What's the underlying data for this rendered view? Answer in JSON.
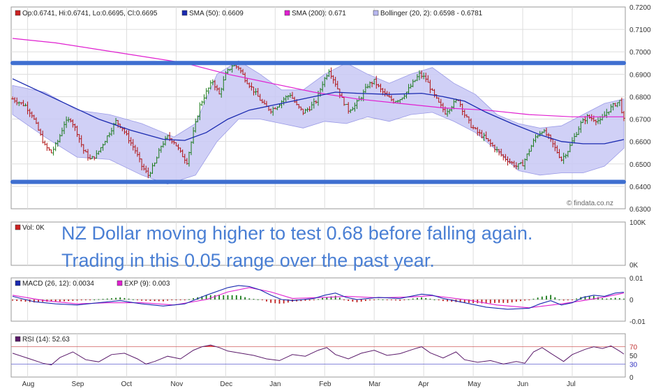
{
  "chart_data": [
    {
      "type": "ohlc",
      "panel": "price",
      "ylim": [
        0.63,
        0.72
      ],
      "yticks": [
        "0.6300",
        "0.6400",
        "0.6500",
        "0.6600",
        "0.6700",
        "0.6800",
        "0.6900",
        "0.7000",
        "0.7100",
        "0.7200"
      ],
      "months": [
        "Aug",
        "Sep",
        "Oct",
        "Nov",
        "Dec",
        "Jan",
        "Feb",
        "Mar",
        "Apr",
        "May",
        "Jun",
        "Jul"
      ],
      "legend": [
        {
          "text": "Op:0.6741, Hi:0.6741, Lo:0.6695, Cl:0.6695",
          "color": "#cc2222"
        },
        {
          "text": "SMA (50): 0.6609",
          "color": "#1a2ab0"
        },
        {
          "text": "SMA (200): 0.671",
          "color": "#e020d0"
        },
        {
          "text": "Bollinger (20, 2): 0.6598 - 0.6781",
          "color": "#b8b8f0"
        }
      ],
      "close_path": [
        [
          0,
          0.679
        ],
        [
          3,
          0.6775
        ],
        [
          6,
          0.676
        ],
        [
          9,
          0.672
        ],
        [
          12,
          0.665
        ],
        [
          15,
          0.658
        ],
        [
          18,
          0.655
        ],
        [
          21,
          0.66
        ],
        [
          24,
          0.668
        ],
        [
          27,
          0.67
        ],
        [
          30,
          0.664
        ],
        [
          33,
          0.656
        ],
        [
          36,
          0.652
        ],
        [
          39,
          0.654
        ],
        [
          42,
          0.659
        ],
        [
          45,
          0.664
        ],
        [
          48,
          0.669
        ],
        [
          51,
          0.666
        ],
        [
          54,
          0.661
        ],
        [
          57,
          0.656
        ],
        [
          60,
          0.649
        ],
        [
          63,
          0.645
        ],
        [
          66,
          0.65
        ],
        [
          69,
          0.658
        ],
        [
          72,
          0.662
        ],
        [
          75,
          0.66
        ],
        [
          78,
          0.655
        ],
        [
          81,
          0.651
        ],
        [
          84,
          0.664
        ],
        [
          87,
          0.676
        ],
        [
          90,
          0.682
        ],
        [
          93,
          0.687
        ],
        [
          96,
          0.681
        ],
        [
          99,
          0.69
        ],
        [
          102,
          0.694
        ],
        [
          105,
          0.693
        ],
        [
          108,
          0.688
        ],
        [
          111,
          0.684
        ],
        [
          114,
          0.68
        ],
        [
          117,
          0.676
        ],
        [
          120,
          0.674
        ],
        [
          123,
          0.676
        ],
        [
          126,
          0.679
        ],
        [
          129,
          0.681
        ],
        [
          132,
          0.676
        ],
        [
          135,
          0.673
        ],
        [
          138,
          0.675
        ],
        [
          141,
          0.678
        ],
        [
          144,
          0.686
        ],
        [
          147,
          0.692
        ],
        [
          150,
          0.686
        ],
        [
          153,
          0.679
        ],
        [
          156,
          0.674
        ],
        [
          159,
          0.676
        ],
        [
          162,
          0.68
        ],
        [
          165,
          0.685
        ],
        [
          168,
          0.687
        ],
        [
          171,
          0.683
        ],
        [
          174,
          0.68
        ],
        [
          177,
          0.678
        ],
        [
          180,
          0.679
        ],
        [
          183,
          0.682
        ],
        [
          186,
          0.686
        ],
        [
          189,
          0.69
        ],
        [
          192,
          0.688
        ],
        [
          195,
          0.682
        ],
        [
          198,
          0.677
        ],
        [
          201,
          0.673
        ],
        [
          204,
          0.676
        ],
        [
          207,
          0.679
        ],
        [
          210,
          0.672
        ],
        [
          213,
          0.667
        ],
        [
          216,
          0.664
        ],
        [
          219,
          0.662
        ],
        [
          222,
          0.659
        ],
        [
          225,
          0.656
        ],
        [
          228,
          0.653
        ],
        [
          231,
          0.651
        ],
        [
          234,
          0.649
        ],
        [
          237,
          0.65
        ],
        [
          240,
          0.656
        ],
        [
          243,
          0.662
        ],
        [
          246,
          0.665
        ],
        [
          249,
          0.662
        ],
        [
          252,
          0.657
        ],
        [
          255,
          0.652
        ],
        [
          258,
          0.656
        ],
        [
          261,
          0.662
        ],
        [
          264,
          0.668
        ],
        [
          267,
          0.671
        ],
        [
          270,
          0.67
        ],
        [
          273,
          0.669
        ],
        [
          276,
          0.673
        ],
        [
          279,
          0.676
        ],
        [
          282,
          0.678
        ],
        [
          284,
          0.6695
        ]
      ],
      "sma50": [
        [
          0,
          0.688
        ],
        [
          20,
          0.679
        ],
        [
          40,
          0.67
        ],
        [
          55,
          0.665
        ],
        [
          70,
          0.661
        ],
        [
          80,
          0.6605
        ],
        [
          90,
          0.664
        ],
        [
          100,
          0.67
        ],
        [
          110,
          0.674
        ],
        [
          120,
          0.676
        ],
        [
          130,
          0.678
        ],
        [
          140,
          0.68
        ],
        [
          150,
          0.682
        ],
        [
          160,
          0.6815
        ],
        [
          175,
          0.681
        ],
        [
          190,
          0.6815
        ],
        [
          200,
          0.68
        ],
        [
          210,
          0.678
        ],
        [
          220,
          0.673
        ],
        [
          232,
          0.668
        ],
        [
          245,
          0.663
        ],
        [
          255,
          0.66
        ],
        [
          265,
          0.659
        ],
        [
          275,
          0.659
        ],
        [
          284,
          0.6609
        ]
      ],
      "sma200": [
        [
          0,
          0.706
        ],
        [
          20,
          0.704
        ],
        [
          40,
          0.701
        ],
        [
          60,
          0.698
        ],
        [
          80,
          0.695
        ],
        [
          100,
          0.69
        ],
        [
          120,
          0.686
        ],
        [
          140,
          0.682
        ],
        [
          160,
          0.679
        ],
        [
          180,
          0.677
        ],
        [
          200,
          0.675
        ],
        [
          220,
          0.674
        ],
        [
          240,
          0.672
        ],
        [
          260,
          0.671
        ],
        [
          284,
          0.671
        ]
      ],
      "bollinger": {
        "upper": [
          [
            0,
            0.685
          ],
          [
            15,
            0.682
          ],
          [
            30,
            0.674
          ],
          [
            45,
            0.672
          ],
          [
            60,
            0.668
          ],
          [
            75,
            0.662
          ],
          [
            85,
            0.668
          ],
          [
            95,
            0.69
          ],
          [
            105,
            0.696
          ],
          [
            115,
            0.69
          ],
          [
            125,
            0.683
          ],
          [
            135,
            0.683
          ],
          [
            145,
            0.69
          ],
          [
            155,
            0.695
          ],
          [
            165,
            0.69
          ],
          [
            175,
            0.686
          ],
          [
            185,
            0.69
          ],
          [
            195,
            0.693
          ],
          [
            205,
            0.686
          ],
          [
            215,
            0.681
          ],
          [
            225,
            0.672
          ],
          [
            235,
            0.668
          ],
          [
            245,
            0.666
          ],
          [
            255,
            0.667
          ],
          [
            265,
            0.672
          ],
          [
            275,
            0.677
          ],
          [
            284,
            0.679
          ]
        ],
        "lower": [
          [
            0,
            0.672
          ],
          [
            15,
            0.662
          ],
          [
            30,
            0.653
          ],
          [
            45,
            0.652
          ],
          [
            60,
            0.645
          ],
          [
            72,
            0.641
          ],
          [
            85,
            0.645
          ],
          [
            95,
            0.66
          ],
          [
            105,
            0.67
          ],
          [
            115,
            0.67
          ],
          [
            125,
            0.668
          ],
          [
            135,
            0.666
          ],
          [
            145,
            0.669
          ],
          [
            155,
            0.668
          ],
          [
            165,
            0.671
          ],
          [
            175,
            0.669
          ],
          [
            185,
            0.672
          ],
          [
            195,
            0.673
          ],
          [
            205,
            0.669
          ],
          [
            215,
            0.664
          ],
          [
            225,
            0.656
          ],
          [
            235,
            0.647
          ],
          [
            245,
            0.645
          ],
          [
            255,
            0.646
          ],
          [
            265,
            0.646
          ],
          [
            275,
            0.649
          ],
          [
            284,
            0.657
          ]
        ]
      },
      "range_lines": [
        0.695,
        0.642
      ]
    },
    {
      "type": "bar",
      "panel": "volume",
      "legend": "Vol: 0K",
      "yticks": [
        "100K",
        "0K"
      ],
      "annotation": [
        "NZ Dollar moving higher to test 0.68 before falling again.",
        "Trading in this 0.05 range over the past year."
      ]
    },
    {
      "type": "line",
      "panel": "macd",
      "legend": [
        {
          "text": "MACD (26, 12): 0.0034",
          "color": "#1a2ab0"
        },
        {
          "text": "EXP (9): 0.003",
          "color": "#e020d0"
        }
      ],
      "ylim": [
        -0.01,
        0.01
      ],
      "yticks": [
        "0.01",
        "0",
        "-0.01"
      ],
      "macd": [
        [
          0,
          0.0015
        ],
        [
          10,
          -0.001
        ],
        [
          20,
          -0.002
        ],
        [
          30,
          -0.0025
        ],
        [
          40,
          -0.0015
        ],
        [
          50,
          -0.0005
        ],
        [
          60,
          -0.002
        ],
        [
          70,
          -0.003
        ],
        [
          80,
          -0.002
        ],
        [
          90,
          0.002
        ],
        [
          100,
          0.0055
        ],
        [
          105,
          0.0065
        ],
        [
          110,
          0.006
        ],
        [
          115,
          0.0045
        ],
        [
          120,
          0.002
        ],
        [
          125,
          0.0
        ],
        [
          130,
          -0.0005
        ],
        [
          140,
          0.0005
        ],
        [
          145,
          0.002
        ],
        [
          150,
          0.003
        ],
        [
          155,
          0.001
        ],
        [
          160,
          0.0
        ],
        [
          170,
          0.001
        ],
        [
          180,
          0.0005
        ],
        [
          190,
          0.0025
        ],
        [
          195,
          0.002
        ],
        [
          200,
          0.0005
        ],
        [
          210,
          -0.0015
        ],
        [
          220,
          -0.0035
        ],
        [
          230,
          -0.0045
        ],
        [
          240,
          -0.004
        ],
        [
          245,
          -0.002
        ],
        [
          250,
          -0.0005
        ],
        [
          255,
          -0.0025
        ],
        [
          260,
          -0.0015
        ],
        [
          265,
          0.001
        ],
        [
          270,
          0.002
        ],
        [
          275,
          0.0015
        ],
        [
          280,
          0.003
        ],
        [
          284,
          0.0034
        ]
      ],
      "signal": [
        [
          0,
          0.002
        ],
        [
          15,
          -0.0005
        ],
        [
          30,
          -0.002
        ],
        [
          45,
          -0.0015
        ],
        [
          60,
          -0.0015
        ],
        [
          75,
          -0.0025
        ],
        [
          90,
          0.0
        ],
        [
          100,
          0.0035
        ],
        [
          110,
          0.0055
        ],
        [
          120,
          0.0035
        ],
        [
          130,
          0.0005
        ],
        [
          145,
          0.001
        ],
        [
          155,
          0.0015
        ],
        [
          170,
          0.0008
        ],
        [
          185,
          0.0012
        ],
        [
          195,
          0.0018
        ],
        [
          210,
          0.0
        ],
        [
          225,
          -0.0025
        ],
        [
          240,
          -0.0038
        ],
        [
          255,
          -0.002
        ],
        [
          265,
          -0.0005
        ],
        [
          275,
          0.0012
        ],
        [
          284,
          0.003
        ]
      ]
    },
    {
      "type": "line",
      "panel": "rsi",
      "legend": "RSI (14): 52.63",
      "ylim": [
        0,
        100
      ],
      "yticks": [
        "70",
        "50",
        "30",
        "0"
      ],
      "rsi": [
        [
          0,
          55
        ],
        [
          8,
          42
        ],
        [
          14,
          32
        ],
        [
          18,
          28
        ],
        [
          22,
          45
        ],
        [
          28,
          58
        ],
        [
          34,
          40
        ],
        [
          40,
          35
        ],
        [
          46,
          52
        ],
        [
          52,
          55
        ],
        [
          58,
          42
        ],
        [
          62,
          30
        ],
        [
          66,
          36
        ],
        [
          72,
          48
        ],
        [
          78,
          42
        ],
        [
          84,
          62
        ],
        [
          88,
          70
        ],
        [
          92,
          74
        ],
        [
          96,
          68
        ],
        [
          100,
          60
        ],
        [
          106,
          55
        ],
        [
          112,
          50
        ],
        [
          118,
          42
        ],
        [
          124,
          38
        ],
        [
          130,
          52
        ],
        [
          136,
          48
        ],
        [
          142,
          62
        ],
        [
          146,
          68
        ],
        [
          150,
          52
        ],
        [
          156,
          42
        ],
        [
          162,
          55
        ],
        [
          168,
          62
        ],
        [
          174,
          50
        ],
        [
          180,
          54
        ],
        [
          186,
          64
        ],
        [
          190,
          70
        ],
        [
          194,
          56
        ],
        [
          200,
          44
        ],
        [
          206,
          58
        ],
        [
          210,
          40
        ],
        [
          216,
          34
        ],
        [
          222,
          38
        ],
        [
          228,
          30
        ],
        [
          234,
          36
        ],
        [
          238,
          32
        ],
        [
          242,
          58
        ],
        [
          246,
          68
        ],
        [
          250,
          55
        ],
        [
          256,
          36
        ],
        [
          260,
          52
        ],
        [
          266,
          64
        ],
        [
          270,
          70
        ],
        [
          274,
          66
        ],
        [
          278,
          72
        ],
        [
          282,
          60
        ],
        [
          284,
          53
        ]
      ]
    }
  ],
  "credit": "© findata.co.nz"
}
